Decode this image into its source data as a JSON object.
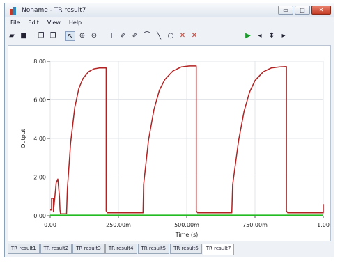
{
  "window": {
    "title": "Noname - TR result7",
    "controls": {
      "minimize": "▭",
      "maximize": "□",
      "close": "✕"
    }
  },
  "menu": {
    "items": [
      "File",
      "Edit",
      "View",
      "Help"
    ]
  },
  "toolbar": {
    "buttons": [
      {
        "name": "open-icon",
        "glyph": "▰"
      },
      {
        "name": "save-icon",
        "glyph": "■"
      },
      {
        "name": "copy-icon",
        "glyph": "❐"
      },
      {
        "name": "paste-icon",
        "glyph": "❐"
      },
      {
        "name": "pointer-icon",
        "glyph": "↖"
      },
      {
        "name": "zoom-icon",
        "glyph": "⊕"
      },
      {
        "name": "zoom-reset-icon",
        "glyph": "⊙"
      },
      {
        "name": "text-tool-icon",
        "glyph": "T"
      },
      {
        "name": "marker-icon",
        "glyph": "✐"
      },
      {
        "name": "marker2-icon",
        "glyph": "✐"
      },
      {
        "name": "arc-icon",
        "glyph": "⌒"
      },
      {
        "name": "line-icon",
        "glyph": "╲"
      },
      {
        "name": "circle-icon",
        "glyph": "○"
      },
      {
        "name": "cursor-red-icon",
        "glyph": "✕"
      },
      {
        "name": "cursor-red2-icon",
        "glyph": "✕"
      },
      {
        "name": "run-icon",
        "glyph": "▶"
      },
      {
        "name": "pan-left-icon",
        "glyph": "◂"
      },
      {
        "name": "pan-vertical-icon",
        "glyph": "⬍"
      },
      {
        "name": "pan-right-icon",
        "glyph": "▸"
      }
    ]
  },
  "tabs": [
    "TR result1",
    "TR result2",
    "TR result3",
    "TR result4",
    "TR result5",
    "TR result6",
    "TR result7"
  ],
  "active_tab": 6,
  "chart_data": {
    "type": "line",
    "xlabel": "Time (s)",
    "ylabel": "Output",
    "xlim": [
      0,
      1.0
    ],
    "ylim": [
      0,
      8.0
    ],
    "x_ticks": [
      0,
      0.25,
      0.5,
      0.75,
      1.0
    ],
    "x_tick_labels": [
      "0.00",
      "250.00m",
      "500.00m",
      "750.00m",
      "1.00"
    ],
    "y_ticks": [
      0,
      2,
      4,
      6,
      8
    ],
    "y_tick_labels": [
      "0.00",
      "2.00",
      "4.00",
      "6.00",
      "8.00"
    ],
    "grid": true,
    "series": [
      {
        "color": "#b22222",
        "x": [
          0,
          0.005,
          0.005,
          0.012,
          0.012,
          0.022,
          0.028,
          0.034,
          0.036,
          0.038,
          0.06,
          0.063,
          0.075,
          0.09,
          0.105,
          0.12,
          0.14,
          0.16,
          0.18,
          0.205,
          0.205,
          0.21,
          0.34,
          0.342,
          0.36,
          0.38,
          0.4,
          0.42,
          0.45,
          0.48,
          0.51,
          0.535,
          0.535,
          0.54,
          0.665,
          0.668,
          0.69,
          0.71,
          0.73,
          0.75,
          0.78,
          0.81,
          0.84,
          0.865,
          0.865,
          0.87,
          1.0,
          1.0
        ],
        "y": [
          0.3,
          0.3,
          0.9,
          0.9,
          0.2,
          1.7,
          1.9,
          1.0,
          0.3,
          0.1,
          0.1,
          1.4,
          3.8,
          5.6,
          6.6,
          7.1,
          7.45,
          7.6,
          7.65,
          7.65,
          0.25,
          0.15,
          0.15,
          1.6,
          3.9,
          5.5,
          6.5,
          7.05,
          7.5,
          7.7,
          7.75,
          7.75,
          0.25,
          0.15,
          0.15,
          1.6,
          3.9,
          5.4,
          6.4,
          7.0,
          7.45,
          7.65,
          7.7,
          7.72,
          0.25,
          0.15,
          0.15,
          0.6
        ]
      },
      {
        "color": "#22bb22",
        "x": [
          0,
          1.0
        ],
        "y": [
          0.02,
          0.02
        ]
      }
    ]
  }
}
